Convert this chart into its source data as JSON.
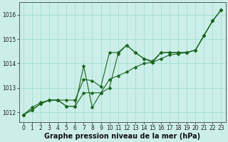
{
  "xlabel": "Graphe pression niveau de la mer (hPa)",
  "hours": [
    0,
    1,
    2,
    3,
    4,
    5,
    6,
    7,
    8,
    9,
    10,
    11,
    12,
    13,
    14,
    15,
    16,
    17,
    18,
    19,
    20,
    21,
    22,
    23
  ],
  "line1": [
    1011.9,
    1012.2,
    1012.4,
    1012.5,
    1012.5,
    1012.5,
    1012.5,
    1013.35,
    1013.3,
    1013.05,
    1014.45,
    1014.45,
    1014.75,
    1014.45,
    1014.2,
    1014.1,
    1014.45,
    1014.45,
    1014.45,
    1014.45,
    1014.55,
    1015.15,
    1015.75,
    1016.2
  ],
  "line2": [
    1011.9,
    1012.1,
    1012.35,
    1012.5,
    1012.5,
    1012.25,
    1012.25,
    1013.9,
    1012.2,
    1012.8,
    1013.0,
    1014.4,
    1014.75,
    1014.45,
    1014.2,
    1014.05,
    1014.45,
    1014.45,
    1014.45,
    1014.45,
    1014.55,
    1015.15,
    1015.75,
    1016.2
  ],
  "line3": [
    1011.9,
    1012.1,
    1012.35,
    1012.5,
    1012.5,
    1012.25,
    1012.25,
    1012.8,
    1012.8,
    1012.8,
    1013.35,
    1013.5,
    1013.65,
    1013.85,
    1014.0,
    1014.05,
    1014.2,
    1014.35,
    1014.4,
    1014.45,
    1014.55,
    1015.15,
    1015.75,
    1016.2
  ],
  "bg_color": "#cceee8",
  "grid_color": "#99ddcc",
  "line_color": "#1a6620",
  "marker": "D",
  "markersize": 2.5,
  "ylim_min": 1011.6,
  "ylim_max": 1016.5,
  "yticks": [
    1012,
    1013,
    1014,
    1015,
    1016
  ],
  "xticks": [
    0,
    1,
    2,
    3,
    4,
    5,
    6,
    7,
    8,
    9,
    10,
    11,
    12,
    13,
    14,
    15,
    16,
    17,
    18,
    19,
    20,
    21,
    22,
    23
  ],
  "tick_fontsize": 5.5,
  "xlabel_fontsize": 7,
  "line_width": 0.8
}
